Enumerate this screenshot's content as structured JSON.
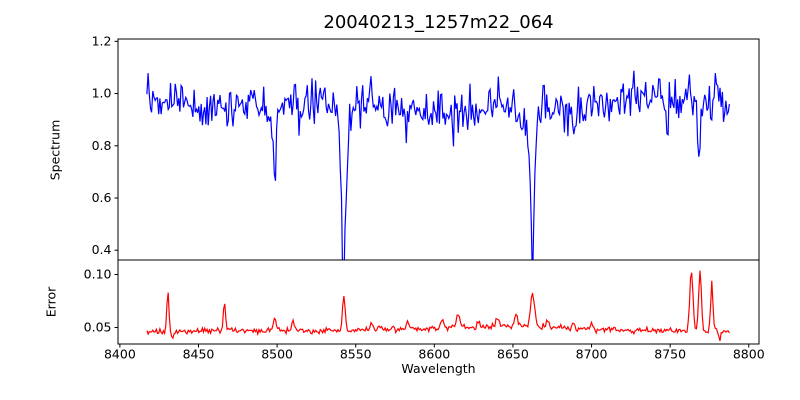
{
  "chart_data": {
    "type": "line",
    "title": "20040213_1257m22_064",
    "xlabel": "Wavelength",
    "xlim": [
      8398.8,
      8806.5
    ],
    "xticks": [
      8400,
      8450,
      8500,
      8550,
      8600,
      8650,
      8700,
      8750,
      8800
    ],
    "xtick_labels": [
      "8400",
      "8450",
      "8500",
      "8550",
      "8600",
      "8650",
      "8700",
      "8750",
      "8800"
    ],
    "x_data_start": 8417.2,
    "x_data_end": 8788,
    "x_step": 0.75,
    "synthesis_seed": 20040213,
    "subplots": [
      {
        "name": "spectrum",
        "ylabel": "Spectrum",
        "color": "#0000ff",
        "ylim": [
          0.3625,
          1.209
        ],
        "yticks": [
          0.4,
          0.6,
          0.8,
          1.0,
          1.2
        ],
        "ytick_labels": [
          "0.4",
          "0.6",
          "0.8",
          "1.0",
          "1.2"
        ],
        "continuum": {
          "base": 0.958,
          "waves": [
            {
              "amp": 0.018,
              "period": 45,
              "phase": 8415
            },
            {
              "amp": 0.01,
              "period": 16,
              "phase": 8400
            }
          ],
          "depressions": [
            {
              "center": 8615,
              "sigma": 18,
              "amp": 0.025
            },
            {
              "center": 8472,
              "sigma": 15,
              "amp": 0.02
            }
          ]
        },
        "absorption_lines": [
          {
            "center": 8498.3,
            "sigma": 1.3,
            "depth": 0.33
          },
          {
            "center": 8498.0,
            "sigma": 5.0,
            "depth": 0.05
          },
          {
            "center": 8542.3,
            "sigma": 2.0,
            "depth": 0.6
          },
          {
            "center": 8542.0,
            "sigma": 7.0,
            "depth": 0.07
          },
          {
            "center": 8662.3,
            "sigma": 1.8,
            "depth": 0.55
          },
          {
            "center": 8662.0,
            "sigma": 7.0,
            "depth": 0.055
          },
          {
            "center": 8468.5,
            "sigma": 1.0,
            "depth": 0.09
          },
          {
            "center": 8514.2,
            "sigma": 1.2,
            "depth": 0.11
          },
          {
            "center": 8583.0,
            "sigma": 1.1,
            "depth": 0.09
          },
          {
            "center": 8611.5,
            "sigma": 1.3,
            "depth": 0.1
          },
          {
            "center": 8621.0,
            "sigma": 1.0,
            "depth": 0.08
          },
          {
            "center": 8688.5,
            "sigma": 1.2,
            "depth": 0.09
          },
          {
            "center": 8748.0,
            "sigma": 1.0,
            "depth": 0.15
          },
          {
            "center": 8768.5,
            "sigma": 0.9,
            "depth": 0.3
          }
        ],
        "emission_spikes": [
          {
            "center": 8559.2,
            "sigma": 0.7,
            "amp": 0.15
          },
          {
            "center": 8779.0,
            "sigma": 0.7,
            "amp": 0.13
          }
        ],
        "noise_from_error_factor": 0.85
      },
      {
        "name": "error",
        "ylabel": "Error",
        "color": "#ff0000",
        "ylim": [
          0.0344,
          0.1137
        ],
        "yticks": [
          0.05,
          0.1
        ],
        "ytick_labels": [
          "0.05",
          "0.10"
        ],
        "baseline": 0.047,
        "broad_bump": {
          "center": 8640,
          "sigma": 60,
          "amp": 0.004
        },
        "left_dip": {
          "center": 8420,
          "sigma": 30,
          "amp": 0.001
        },
        "spikes": [
          {
            "center": 8430.5,
            "sigma": 0.9,
            "amp": 0.038
          },
          {
            "center": 8433.5,
            "sigma": 0.6,
            "amp": -0.006
          },
          {
            "center": 8466.5,
            "sigma": 0.9,
            "amp": 0.027
          },
          {
            "center": 8498.5,
            "sigma": 1.2,
            "amp": 0.013
          },
          {
            "center": 8510.0,
            "sigma": 1.0,
            "amp": 0.01
          },
          {
            "center": 8542.5,
            "sigma": 1.3,
            "amp": 0.031
          },
          {
            "center": 8560.0,
            "sigma": 1.0,
            "amp": 0.008
          },
          {
            "center": 8583.0,
            "sigma": 1.0,
            "amp": 0.007
          },
          {
            "center": 8605.0,
            "sigma": 1.2,
            "amp": 0.008
          },
          {
            "center": 8615.0,
            "sigma": 1.5,
            "amp": 0.012
          },
          {
            "center": 8628.0,
            "sigma": 1.0,
            "amp": 0.006
          },
          {
            "center": 8640.0,
            "sigma": 1.2,
            "amp": 0.01
          },
          {
            "center": 8652.0,
            "sigma": 1.5,
            "amp": 0.012
          },
          {
            "center": 8662.5,
            "sigma": 1.8,
            "amp": 0.031
          },
          {
            "center": 8672.0,
            "sigma": 1.0,
            "amp": 0.009
          },
          {
            "center": 8688.0,
            "sigma": 1.0,
            "amp": 0.007
          },
          {
            "center": 8700.0,
            "sigma": 1.0,
            "amp": 0.005
          },
          {
            "center": 8763.5,
            "sigma": 1.4,
            "amp": 0.057
          },
          {
            "center": 8769.0,
            "sigma": 1.2,
            "amp": 0.057
          },
          {
            "center": 8776.5,
            "sigma": 1.0,
            "amp": 0.046
          },
          {
            "center": 8781.5,
            "sigma": 0.7,
            "amp": -0.011
          }
        ],
        "noise_sigma": 0.0013
      }
    ],
    "axis_color": "#000000",
    "background_color": "#ffffff"
  }
}
